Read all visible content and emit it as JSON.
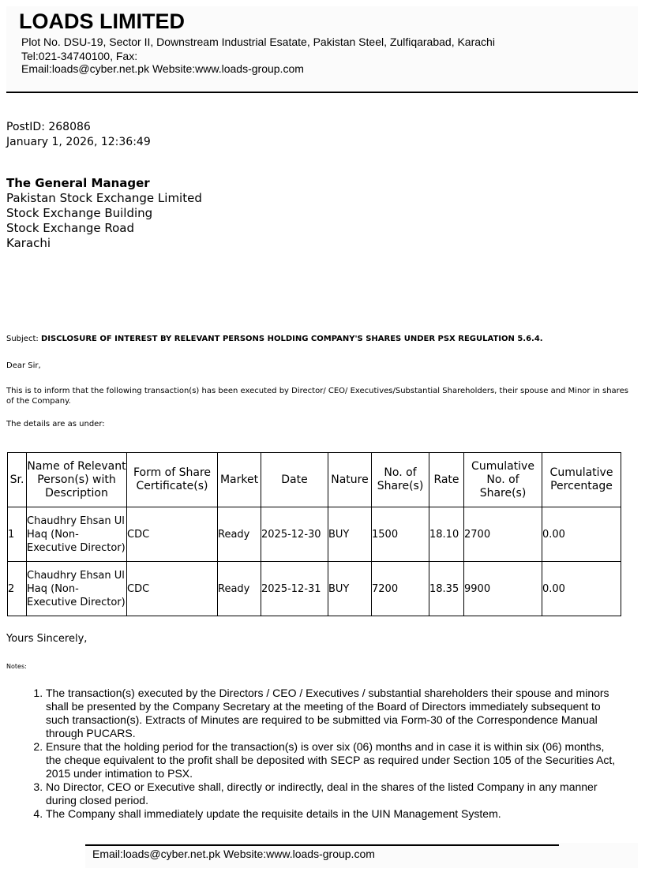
{
  "letterhead": {
    "company": "LOADS LIMITED",
    "address": "Plot No. DSU-19, Sector II, Downstream Industrial Esatate, Pakistan Steel, Zulfiqarabad, Karachi",
    "tel": "Tel:021-34740100,  Fax:",
    "contact": "Email:loads@cyber.net.pk Website:www.loads-group.com"
  },
  "post": {
    "id": "PostID: 268086",
    "datetime": "January 1, 2026, 12:36:49"
  },
  "recipient": {
    "title": "The General Manager",
    "lines": [
      "Pakistan Stock Exchange Limited",
      "Stock Exchange Building",
      "Stock Exchange Road",
      "Karachi"
    ]
  },
  "subject": {
    "label": "Subject:",
    "text": "DISCLOSURE OF INTEREST BY RELEVANT PERSONS HOLDING COMPANY'S SHARES UNDER PSX REGULATION 5.6.4."
  },
  "salutation": "Dear Sir,",
  "intro": "This is to inform that the following transaction(s) has been executed by Director/ CEO/ Executives/Substantial Shareholders, their spouse and Minor in shares of the Company.",
  "details": "The details are as under:",
  "table": {
    "headers": [
      "Sr.",
      "Name of Relevant Person(s) with Description",
      "Form of Share Certificate(s)",
      "Market",
      "Date",
      "Nature",
      "No. of Share(s)",
      "Rate",
      "Cumulative No. of Share(s)",
      "Cumulative Percentage"
    ],
    "rows": [
      [
        "1",
        "Chaudhry Ehsan Ul Haq (Non-Executive Director)",
        "CDC",
        "Ready",
        "2025-12-30",
        "BUY",
        "1500",
        "18.10",
        "2700",
        "0.00"
      ],
      [
        "2",
        "Chaudhry Ehsan Ul Haq (Non-Executive Director)",
        "CDC",
        "Ready",
        "2025-12-31",
        "BUY",
        "7200",
        "18.35",
        "9900",
        "0.00"
      ]
    ]
  },
  "closing": "Yours Sincerely,",
  "notes_label": "Notes:",
  "notes": [
    "The transaction(s) executed by the Directors / CEO / Executives / substantial shareholders their spouse and minors shall be presented by the Company Secretary at the meeting of the Board of Directors immediately subsequent to such transaction(s). Extracts of Minutes are required to be submitted via Form-30 of the Correspondence Manual through PUCARS.",
    "Ensure that the holding period for the transaction(s) is over six (06) months and in case it is within six (06) months, the cheque equivalent to the profit shall be deposited with SECP as required under Section 105 of the Securities Act, 2015 under intimation to PSX.",
    "No Director, CEO or Executive shall, directly or indirectly, deal in the shares of the listed Company in any manner during closed period.",
    "The Company shall immediately update the requisite details in the UIN Management System."
  ],
  "footer": "Email:loads@cyber.net.pk Website:www.loads-group.com"
}
